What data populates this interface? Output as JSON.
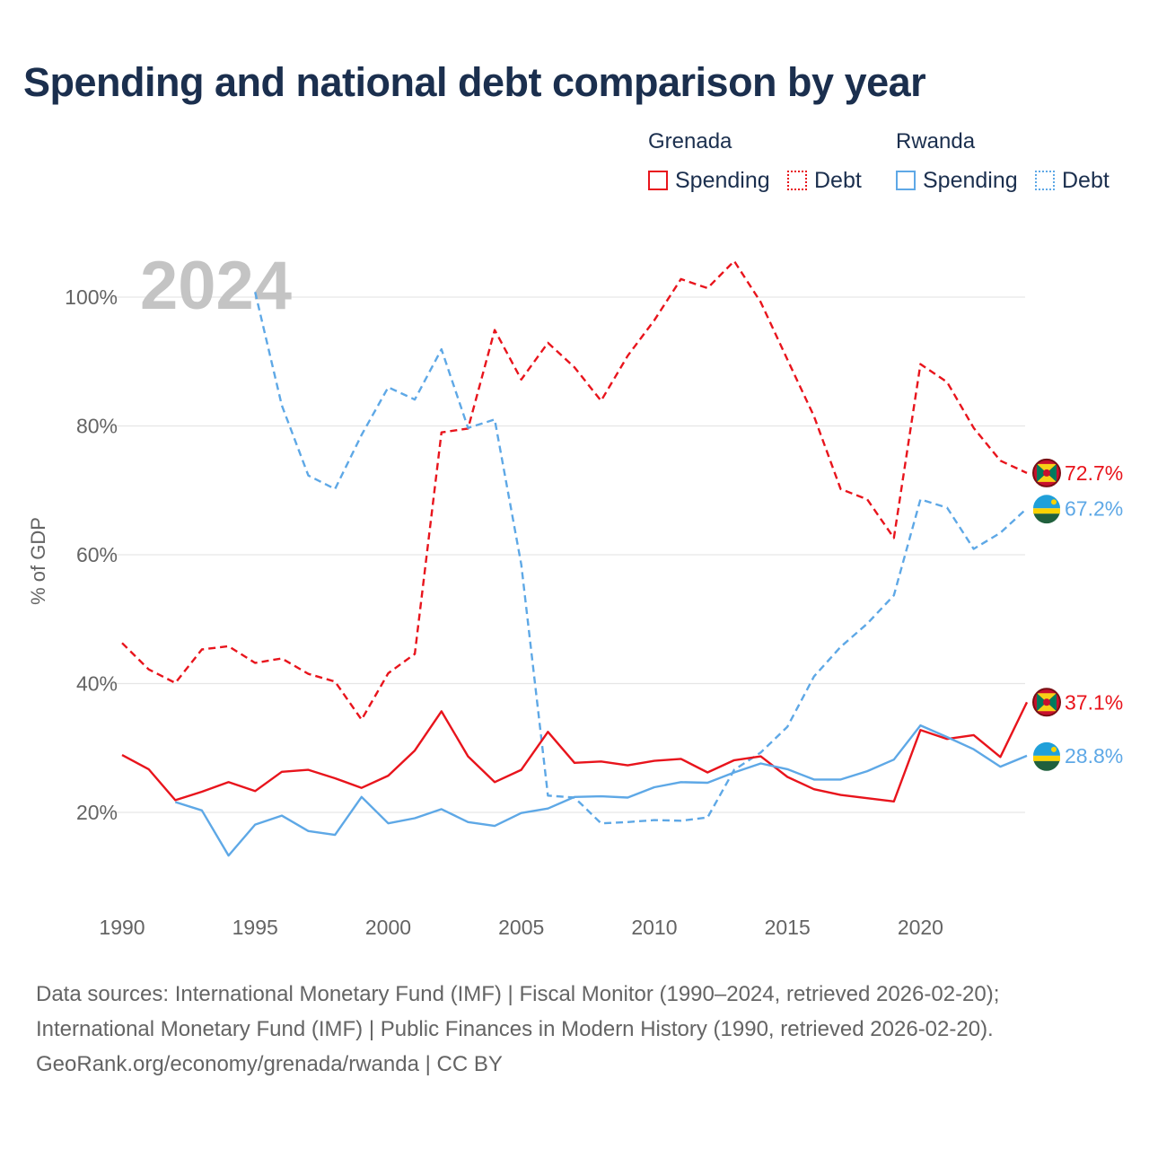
{
  "title": "Spending and national debt comparison by year",
  "legend": {
    "groups": [
      {
        "name": "Grenada",
        "color": "#e8141c",
        "items": [
          {
            "label": "Spending",
            "style": "solid"
          },
          {
            "label": "Debt",
            "style": "dotted"
          }
        ]
      },
      {
        "name": "Rwanda",
        "color": "#5ea8e6",
        "items": [
          {
            "label": "Spending",
            "style": "solid"
          },
          {
            "label": "Debt",
            "style": "dotted"
          }
        ]
      }
    ]
  },
  "footer": {
    "line1": "Data sources: International Monetary Fund (IMF) | Fiscal Monitor (1990–2024, retrieved 2026-02-20);",
    "line2": "International Monetary Fund (IMF) | Public Finances in Modern History (1990, retrieved 2026-02-20).",
    "line3": "GeoRank.org/economy/grenada/rwanda | CC BY"
  },
  "colors": {
    "grenada": "#e8141c",
    "rwanda": "#5ea8e6",
    "title": "#1b2f4e",
    "axis_text": "#646464",
    "grid": "#e6e6e6",
    "year_watermark": "#c4c4c4"
  },
  "chart_data": {
    "type": "line",
    "year_label": "2024",
    "ylabel": "% of GDP",
    "xlim": [
      1990,
      2024
    ],
    "ylim": [
      8,
      108
    ],
    "xticks": [
      1990,
      1995,
      2000,
      2005,
      2010,
      2015,
      2020
    ],
    "xtick_labels": [
      "1990",
      "1995",
      "2000",
      "2005",
      "2010",
      "2015",
      "2020"
    ],
    "yticks": [
      20,
      40,
      60,
      80,
      100
    ],
    "ytick_labels": [
      "20%",
      "40%",
      "60%",
      "80%",
      "100%"
    ],
    "series": [
      {
        "name": "Grenada Debt",
        "country": "grenada",
        "dashed": true,
        "end_label": "72.7%",
        "x": [
          1990,
          1991,
          1992,
          1993,
          1994,
          1995,
          1996,
          1997,
          1998,
          1999,
          2000,
          2001,
          2002,
          2003,
          2004,
          2005,
          2006,
          2007,
          2008,
          2009,
          2010,
          2011,
          2012,
          2013,
          2014,
          2015,
          2016,
          2017,
          2018,
          2019,
          2020,
          2021,
          2022,
          2023,
          2024
        ],
        "values": [
          46.3,
          42.2,
          40.1,
          45.3,
          45.8,
          43.2,
          43.9,
          41.5,
          40.3,
          34.4,
          41.6,
          44.6,
          79.0,
          79.6,
          94.9,
          87.2,
          92.9,
          89.1,
          83.9,
          90.9,
          96.4,
          102.8,
          101.4,
          105.6,
          99.2,
          90.3,
          81.5,
          70.2,
          68.6,
          62.6,
          89.6,
          86.8,
          79.7,
          74.6,
          72.7
        ]
      },
      {
        "name": "Rwanda Debt",
        "country": "rwanda",
        "dashed": true,
        "end_label": "67.2%",
        "x": [
          1995,
          1996,
          1997,
          1998,
          1999,
          2000,
          2001,
          2002,
          2003,
          2004,
          2005,
          2006,
          2007,
          2008,
          2009,
          2010,
          2011,
          2012,
          2013,
          2014,
          2015,
          2016,
          2017,
          2018,
          2019,
          2020,
          2021,
          2022,
          2023,
          2024
        ],
        "values": [
          100.8,
          83.2,
          72.3,
          70.2,
          78.6,
          86.0,
          84.1,
          91.9,
          79.7,
          81.0,
          58.5,
          22.6,
          22.3,
          18.3,
          18.5,
          18.8,
          18.7,
          19.2,
          26.6,
          29.3,
          33.3,
          41.1,
          45.7,
          49.3,
          53.7,
          68.6,
          67.3,
          60.9,
          63.4,
          67.2
        ]
      },
      {
        "name": "Grenada Spending",
        "country": "grenada",
        "dashed": false,
        "end_label": "37.1%",
        "x": [
          1990,
          1991,
          1992,
          1993,
          1994,
          1995,
          1996,
          1997,
          1998,
          1999,
          2000,
          2001,
          2002,
          2003,
          2004,
          2005,
          2006,
          2007,
          2008,
          2009,
          2010,
          2011,
          2012,
          2013,
          2014,
          2015,
          2016,
          2017,
          2018,
          2019,
          2020,
          2021,
          2022,
          2023,
          2024
        ],
        "values": [
          28.9,
          26.7,
          21.9,
          23.2,
          24.7,
          23.3,
          26.3,
          26.6,
          25.3,
          23.8,
          25.7,
          29.6,
          35.7,
          28.7,
          24.7,
          26.6,
          32.5,
          27.7,
          27.9,
          27.3,
          28.0,
          28.3,
          26.2,
          28.1,
          28.7,
          25.5,
          23.6,
          22.7,
          22.2,
          21.7,
          32.8,
          31.4,
          32.0,
          28.6,
          37.1
        ]
      },
      {
        "name": "Rwanda Spending",
        "country": "rwanda",
        "dashed": false,
        "end_label": "28.8%",
        "x": [
          1992,
          1993,
          1994,
          1995,
          1996,
          1997,
          1998,
          1999,
          2000,
          2001,
          2002,
          2003,
          2004,
          2005,
          2006,
          2007,
          2008,
          2009,
          2010,
          2011,
          2012,
          2013,
          2014,
          2015,
          2016,
          2017,
          2018,
          2019,
          2020,
          2021,
          2022,
          2023,
          2024
        ],
        "values": [
          21.6,
          20.3,
          13.3,
          18.1,
          19.5,
          17.1,
          16.5,
          22.4,
          18.3,
          19.1,
          20.5,
          18.5,
          17.9,
          19.9,
          20.6,
          22.4,
          22.5,
          22.3,
          23.9,
          24.7,
          24.6,
          26.2,
          27.6,
          26.7,
          25.1,
          25.1,
          26.4,
          28.2,
          33.5,
          31.7,
          29.8,
          27.1,
          28.8
        ]
      }
    ]
  }
}
